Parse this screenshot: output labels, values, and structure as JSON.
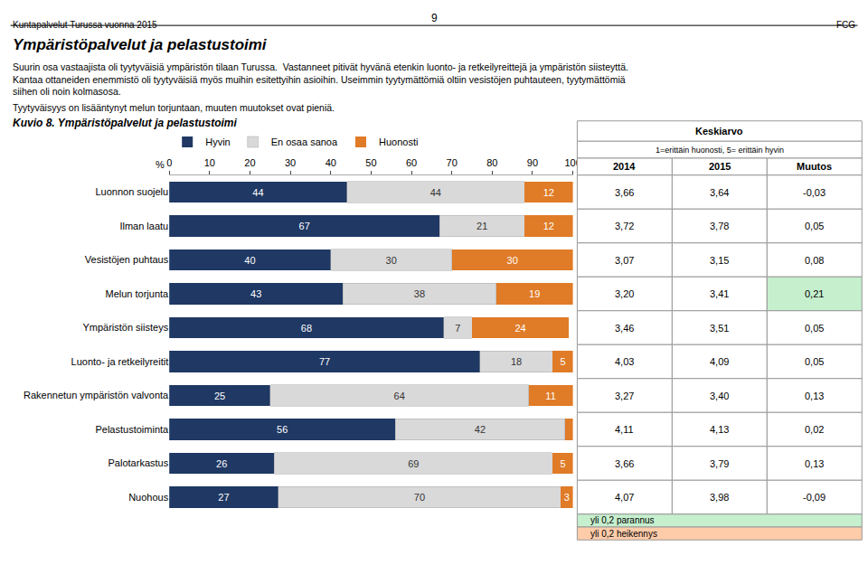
{
  "chart_data": [
    {
      "type": "bar",
      "orientation": "horizontal",
      "stacked": true,
      "data_labels": true,
      "grid": false,
      "title": "Kuvio 8. Ympäristöpalvelut ja pelastustoimi",
      "xlabel": "%",
      "annotations": [
        {
          "text": "9"
        },
        {
          "text": "Kuntapalvelut Turussa vuonna 2015"
        },
        {
          "text": "FCG"
        },
        {
          "text": "Ympäristöpalvelut ja pelastustoimi"
        },
        {
          "text": "Suurin osa vastaajista oli tyytyväisiä ympäristön tilaan Turussa.  Vastanneet pitivät hyvänä etenkin luonto- ja retkeilyreittejä ja ympäristön siisteyttä.\nKantaa ottaneiden enemmistö oli tyytyväisiä myös muihin esitettyihin asioihin. Useimmin tyytymättömiä oltiin vesistöjen puhtauteen, tyytymättömiä\nsiihen oli noin kolmasosa."
        },
        {
          "text": "Tyytyväisyys on lisääntynyt melun torjuntaan, muuten muutokset ovat pieniä."
        }
      ],
      "categories": [
        "Luonnon suojelu",
        "Ilman laatu",
        "Vesistöjen puhtaus",
        "Melun torjunta",
        "Ympäristön siisteys",
        "Luonto- ja retkeilyreitit",
        "Rakennetun ympäristön valvonta",
        "Pelastustoiminta",
        "Palotarkastus",
        "Nuohous"
      ],
      "series": [
        {
          "name": "Hyvin",
          "color": "#1F3864",
          "values": [
            44,
            67,
            40,
            43,
            68,
            77,
            25,
            56,
            26,
            27
          ]
        },
        {
          "name": "En osaa sanoa",
          "color": "#D9D9D9",
          "values": [
            44,
            21,
            30,
            38,
            7,
            18,
            64,
            42,
            69,
            70
          ]
        },
        {
          "name": "Huonosti",
          "color": "#E07B27",
          "values": [
            12,
            12,
            30,
            19,
            24,
            5,
            11,
            2,
            5,
            3
          ],
          "value_labels": [
            "12",
            "12",
            "30",
            "19",
            "24",
            "5",
            "11",
            null,
            "5",
            "3"
          ]
        }
      ],
      "xlim": [
        0,
        100
      ],
      "xticks": [
        0,
        10,
        20,
        30,
        40,
        50,
        60,
        70,
        80,
        90,
        100
      ]
    },
    {
      "type": "table",
      "title": "Keskiarvo",
      "subtitle": "1=erittäin huonosti, 5= erittäin hyvin",
      "series": [
        {
          "name": "2014",
          "values": [
            3.66,
            3.72,
            3.07,
            3.2,
            3.46,
            4.03,
            3.27,
            4.11,
            3.66,
            4.07
          ],
          "value_labels": [
            "3,66",
            "3,72",
            "3,07",
            "3,20",
            "3,46",
            "4,03",
            "3,27",
            "4,11",
            "3,66",
            "4,07"
          ]
        },
        {
          "name": "2015",
          "values": [
            3.64,
            3.78,
            3.15,
            3.41,
            3.51,
            4.09,
            3.4,
            4.13,
            3.79,
            3.98
          ],
          "value_labels": [
            "3,64",
            "3,78",
            "3,15",
            "3,41",
            "3,51",
            "4,09",
            "3,40",
            "4,13",
            "3,79",
            "3,98"
          ]
        },
        {
          "name": "Muutos",
          "values": [
            -0.03,
            0.05,
            0.08,
            0.21,
            0.05,
            0.05,
            0.13,
            0.02,
            0.13,
            -0.09
          ],
          "value_labels": [
            "-0,03",
            "0,05",
            "0,08",
            "0,21",
            "0,05",
            "0,05",
            "0,13",
            "0,02",
            "0,13",
            "-0,09"
          ],
          "colors": [
            "#ffffff",
            "#ffffff",
            "#ffffff",
            "#c6efce",
            "#ffffff",
            "#ffffff",
            "#ffffff",
            "#ffffff",
            "#ffffff",
            "#ffffff"
          ]
        }
      ],
      "annotations": [
        {
          "text": "yli 0,2 parannus",
          "color": "#c6efce"
        },
        {
          "text": "yli 0,2 heikennys",
          "color": "#FFCCAA"
        }
      ]
    }
  ]
}
